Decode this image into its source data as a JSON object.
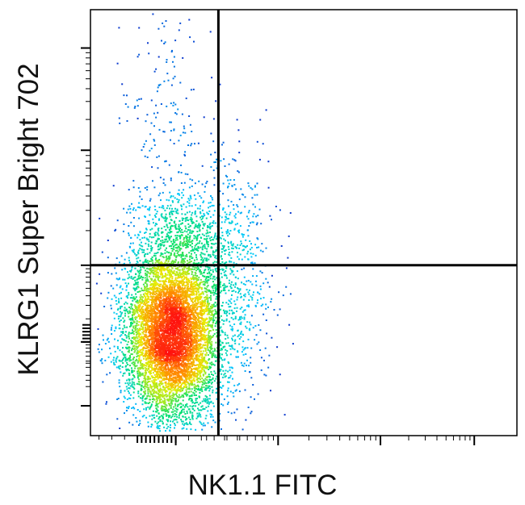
{
  "chart_data": {
    "type": "scatter",
    "subtype": "flow-cytometry-density-dot-plot",
    "xlabel": "NK1.1 FITC",
    "ylabel": "KLRG1 Super Bright 702",
    "x_scale": "biexponential",
    "y_scale": "biexponential",
    "quadrant_gate": {
      "x": 0.3,
      "y": 0.4
    },
    "density_colormap": [
      "#1010c0",
      "#00c8ff",
      "#00e070",
      "#e8ec00",
      "#ff9000",
      "#ff1010"
    ],
    "populations": [
      {
        "name": "",
        "center": [
          0.19,
          0.24
        ],
        "spread": [
          0.055,
          0.1
        ],
        "count": 7000
      },
      {
        "name": "",
        "center": [
          0.33,
          0.36
        ],
        "spread": [
          0.05,
          0.15
        ],
        "count": 650
      },
      {
        "name": "",
        "center": [
          0.17,
          0.72
        ],
        "spread": [
          0.05,
          0.17
        ],
        "count": 220
      },
      {
        "name": "",
        "center": [
          0.22,
          0.47
        ],
        "spread": [
          0.06,
          0.05
        ],
        "count": 500
      }
    ]
  }
}
